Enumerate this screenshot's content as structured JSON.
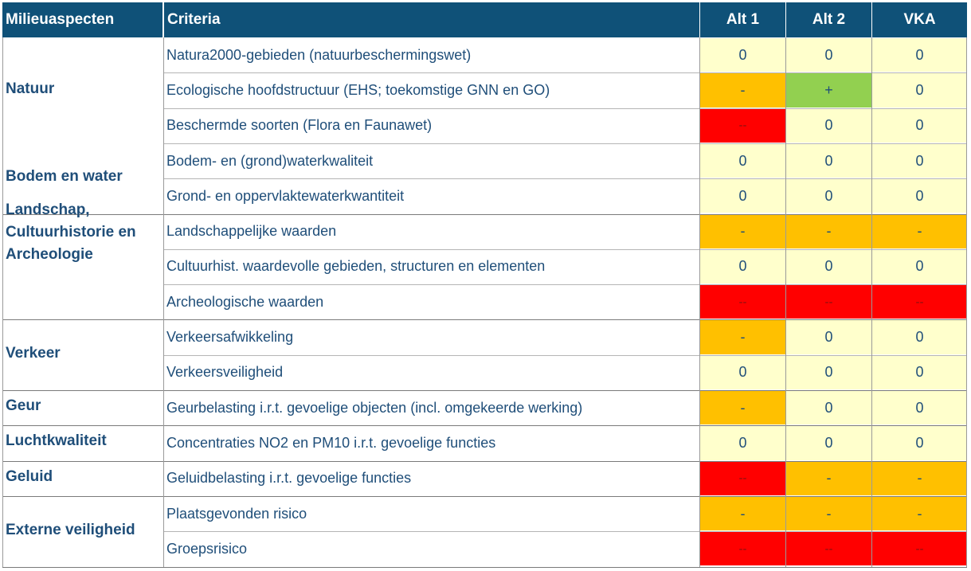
{
  "colors": {
    "header": "#0f5178",
    "text": "#1f4e79",
    "neutral": "#ffffcc",
    "negative": "#ffc000",
    "strongly_negative": "#ff0000",
    "positive": "#92d050"
  },
  "header": {
    "aspect": "Milieuaspecten",
    "criteria": "Criteria",
    "alt1": "Alt 1",
    "alt2": "Alt 2",
    "vka": "VKA"
  },
  "aspects": [
    {
      "label": "Natuur"
    },
    {
      "label": "Bodem en water"
    },
    {
      "label": "Landschap,\nCultuurhistorie en\nArcheologie"
    },
    {
      "label": "Verkeer"
    },
    {
      "label": "Geur"
    },
    {
      "label": "Luchtkwaliteit"
    },
    {
      "label": "Geluid"
    },
    {
      "label": "Externe veiligheid"
    }
  ],
  "rows": [
    {
      "criterion": "Natura2000-gebieden (natuurbeschermingswet)",
      "alt1": "0",
      "alt2": "0",
      "vka": "0"
    },
    {
      "criterion": "Ecologische hoofdstructuur (EHS; toekomstige GNN en GO)",
      "alt1": "-",
      "alt2": "+",
      "vka": "0"
    },
    {
      "criterion": "Beschermde soorten (Flora en Faunawet)",
      "alt1": "--",
      "alt2": "0",
      "vka": "0"
    },
    {
      "criterion": "Bodem- en (grond)waterkwaliteit",
      "alt1": "0",
      "alt2": "0",
      "vka": "0"
    },
    {
      "criterion": "Grond- en oppervlaktewaterkwantiteit",
      "alt1": "0",
      "alt2": "0",
      "vka": "0"
    },
    {
      "criterion": "Landschappelijke waarden",
      "alt1": "-",
      "alt2": "-",
      "vka": "-"
    },
    {
      "criterion": "Cultuurhist. waardevolle gebieden, structuren en elementen",
      "alt1": "0",
      "alt2": "0",
      "vka": "0"
    },
    {
      "criterion": "Archeologische waarden",
      "alt1": "--",
      "alt2": "--",
      "vka": "--"
    },
    {
      "criterion": "Verkeersafwikkeling",
      "alt1": "-",
      "alt2": "0",
      "vka": "0"
    },
    {
      "criterion": "Verkeersveiligheid",
      "alt1": "0",
      "alt2": "0",
      "vka": "0"
    },
    {
      "criterion": "Geurbelasting i.r.t. gevoelige objecten (incl. omgekeerde werking)",
      "alt1": "-",
      "alt2": "0",
      "vka": "0"
    },
    {
      "criterion": "Concentraties NO2 en PM10 i.r.t. gevoelige functies",
      "alt1": "0",
      "alt2": "0",
      "vka": "0"
    },
    {
      "criterion": "Geluidbelasting i.r.t. gevoelige functies",
      "alt1": "--",
      "alt2": "-",
      "vka": "-"
    },
    {
      "criterion": "Plaatsgevonden risico",
      "alt1": "-",
      "alt2": "-",
      "vka": "-"
    },
    {
      "criterion": "Groepsrisico",
      "alt1": "--",
      "alt2": "--",
      "vka": "--"
    }
  ]
}
